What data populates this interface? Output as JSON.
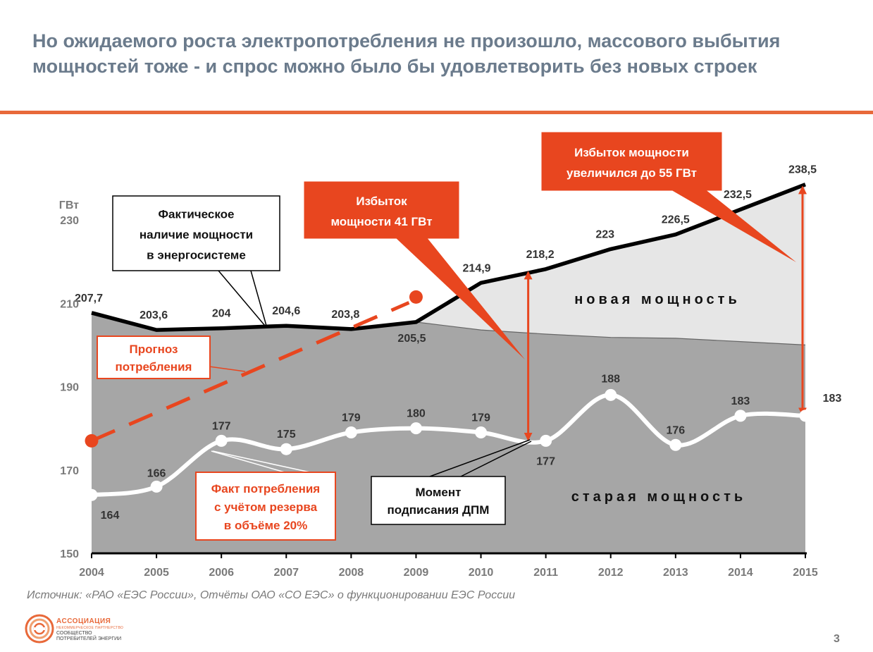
{
  "title": {
    "line1": "Но ожидаемого роста электропотребления не произошло, массового выбытия",
    "line2": "мощностей тоже - и спрос можно было бы удовлетворить без новых строек"
  },
  "source": "Источник: «РАО «ЕЭС России», Отчёты ОАО «СО ЕЭС» о функционировании ЕЭС России",
  "page_number": "3",
  "logo": {
    "line1": "АССОЦИАЦИЯ",
    "line2": "НЕКОММЕРЧЕСКОЕ ПАРТНЕРСТВО",
    "line3": "СООБЩЕСТВО",
    "line4": "ПОТРЕБИТЕЛЕЙ ЭНЕРГИИ"
  },
  "colors": {
    "accent": "#e8461f",
    "old_area": "#a6a6a6",
    "new_area": "#e6e6e6",
    "title": "#6b7b8c"
  },
  "chart_data": {
    "type": "area",
    "ylabel": "ГВт",
    "ylim": [
      150,
      240
    ],
    "yticks": [
      150,
      170,
      190,
      210,
      230
    ],
    "x": [
      2004,
      2005,
      2006,
      2007,
      2008,
      2009,
      2010,
      2011,
      2012,
      2013,
      2014,
      2015
    ],
    "grid": false,
    "series": [
      {
        "name": "Фактическое наличие мощности в энергосистеме",
        "values": [
          207.7,
          203.6,
          204,
          204.6,
          203.8,
          205.5,
          214.9,
          218.2,
          223,
          226.5,
          232.5,
          238.5
        ],
        "labels": [
          "207,7",
          "203,6",
          "204",
          "204,6",
          "203,8",
          "205,5",
          "214,9",
          "218,2",
          "223",
          "226,5",
          "232,5",
          "238,5"
        ]
      },
      {
        "name": "старая мощность",
        "values": [
          207.7,
          203.6,
          204,
          204.6,
          203.8,
          205.5,
          203.6,
          202.6,
          201.8,
          201.6,
          200.8,
          200
        ]
      },
      {
        "name": "Факт потребления с учётом резерва в объёме 20%",
        "values": [
          164,
          166,
          177,
          175,
          179,
          180,
          179,
          177,
          188,
          176,
          183,
          183
        ],
        "labels": [
          "164",
          "166",
          "177",
          "175",
          "179",
          "180",
          "179",
          "177",
          "188",
          "176",
          "183",
          "183"
        ]
      },
      {
        "name": "Прогноз потребления",
        "x": [
          2004,
          2009
        ],
        "values": [
          177,
          211.5
        ]
      }
    ],
    "annotations": {
      "new_capacity": "новая мощность",
      "old_capacity": "старая мощность",
      "fact_capacity_box": [
        "Фактическое",
        "наличие мощности",
        "в энергосистеме"
      ],
      "forecast_box": [
        "Прогноз",
        "потребления"
      ],
      "consumption_box": [
        "Факт потребления",
        "с учётом резерва",
        "в объёме 20%"
      ],
      "dpm_box": [
        "Момент",
        "подписания ДПМ"
      ],
      "surplus_41": [
        "Избыток",
        "мощности 41 ГВт"
      ],
      "surplus_55": [
        "Избыток мощности",
        "увеличился до 55 ГВт"
      ]
    }
  }
}
